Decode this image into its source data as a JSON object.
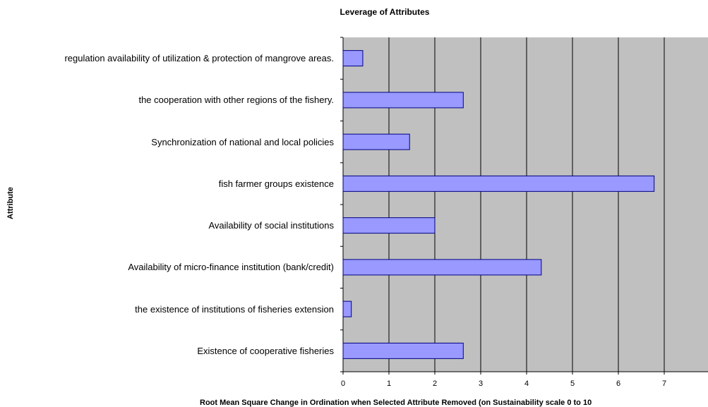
{
  "chart_data": {
    "type": "bar",
    "orientation": "horizontal",
    "title": "Leverage of Attributes",
    "x_label": "Root Mean Square Change in Ordination when Selected Attribute Removed (on Sustainability scale 0 to 10",
    "y_label": "Attribute",
    "categories": [
      "regulation availability of utilization & protection of  mangrove areas.",
      "the cooperation with other regions of the fishery.",
      "Synchronization of national and local policies",
      "fish farmer groups existence",
      "Availability of social institutions",
      "Availability of micro-finance institution (bank/credit)",
      "the existence of institutions of fisheries extension",
      "Existence of cooperative fisheries"
    ],
    "values": [
      0.43,
      2.62,
      1.45,
      6.78,
      2.0,
      4.32,
      0.18,
      2.62
    ],
    "color": "#9999ff",
    "xlim": [
      0,
      8
    ],
    "xticks": [
      0,
      1,
      2,
      3,
      4,
      5,
      6,
      7
    ],
    "grid": true
  }
}
